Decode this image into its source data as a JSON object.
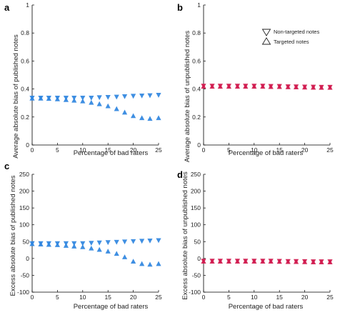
{
  "colors": {
    "blue": "#2f86e0",
    "red": "#d01a4e"
  },
  "legend": {
    "items": [
      {
        "label": "Non-targeted notes",
        "marker": "triangle-down"
      },
      {
        "label": "Targeted notes",
        "marker": "triangle-up"
      }
    ]
  },
  "chart_data": [
    {
      "panel": "a",
      "type": "scatter",
      "xlabel": "Percentage of bad raters",
      "ylabel": "Average absolute bias of published notes",
      "xlim": [
        0,
        25
      ],
      "ylim": [
        0,
        1
      ],
      "xticks": [
        "0",
        "5",
        "10",
        "15",
        "20",
        "25"
      ],
      "yticks": [
        "0",
        "0.2",
        "0.4",
        "0.6",
        "0.8",
        "1"
      ],
      "x": [
        0,
        1.7,
        3.3,
        5,
        6.7,
        8.3,
        10,
        11.7,
        13.3,
        15,
        16.7,
        18.3,
        20,
        21.7,
        23.3,
        25
      ],
      "series": [
        {
          "name": "Non-targeted notes",
          "marker": "triangle-down",
          "color": "blue",
          "values": [
            0.335,
            0.335,
            0.335,
            0.335,
            0.335,
            0.335,
            0.335,
            0.335,
            0.338,
            0.34,
            0.342,
            0.345,
            0.348,
            0.35,
            0.352,
            0.355
          ]
        },
        {
          "name": "Targeted notes",
          "marker": "triangle-up",
          "color": "blue",
          "values": [
            0.335,
            0.335,
            0.333,
            0.33,
            0.325,
            0.32,
            0.315,
            0.305,
            0.295,
            0.28,
            0.26,
            0.235,
            0.21,
            0.195,
            0.19,
            0.195
          ]
        }
      ]
    },
    {
      "panel": "b",
      "type": "scatter",
      "xlabel": "Percentage of bad raters",
      "ylabel": "Average absolute bias of unpublished notes",
      "xlim": [
        0,
        25
      ],
      "ylim": [
        0,
        1
      ],
      "xticks": [
        "0",
        "5",
        "10",
        "15",
        "20",
        "25"
      ],
      "yticks": [
        "0",
        "0.2",
        "0.4",
        "0.6",
        "0.8",
        "1"
      ],
      "x": [
        0,
        1.7,
        3.3,
        5,
        6.7,
        8.3,
        10,
        11.7,
        13.3,
        15,
        16.7,
        18.3,
        20,
        21.7,
        23.3,
        25
      ],
      "series": [
        {
          "name": "Non-targeted notes",
          "marker": "triangle-down",
          "color": "red",
          "values": [
            0.42,
            0.42,
            0.42,
            0.42,
            0.42,
            0.42,
            0.42,
            0.42,
            0.418,
            0.418,
            0.416,
            0.415,
            0.414,
            0.413,
            0.412,
            0.412
          ]
        },
        {
          "name": "Targeted notes",
          "marker": "triangle-up",
          "color": "red",
          "values": [
            0.42,
            0.42,
            0.42,
            0.42,
            0.42,
            0.42,
            0.42,
            0.42,
            0.418,
            0.418,
            0.416,
            0.415,
            0.414,
            0.413,
            0.412,
            0.412
          ]
        }
      ]
    },
    {
      "panel": "c",
      "type": "scatter",
      "xlabel": "Percentage of bad raters",
      "ylabel": "Excess absolute bias of published notes",
      "xlim": [
        0,
        25
      ],
      "ylim": [
        -100,
        250
      ],
      "xticks": [
        "0",
        "5",
        "10",
        "15",
        "20",
        "25"
      ],
      "yticks": [
        "-100",
        "-50",
        "0",
        "50",
        "100",
        "150",
        "200",
        "250"
      ],
      "x": [
        0,
        1.7,
        3.3,
        5,
        6.7,
        8.3,
        10,
        11.7,
        13.3,
        15,
        16.7,
        18.3,
        20,
        21.7,
        23.3,
        25
      ],
      "series": [
        {
          "name": "Non-targeted notes",
          "marker": "triangle-down",
          "color": "blue",
          "values": [
            44,
            44,
            44,
            44,
            44,
            44,
            44,
            45,
            46,
            47,
            48,
            49,
            50,
            51,
            52,
            53
          ]
        },
        {
          "name": "Targeted notes",
          "marker": "triangle-up",
          "color": "blue",
          "values": [
            44,
            43,
            42,
            41,
            39,
            37,
            35,
            31,
            27,
            22,
            15,
            5,
            -8,
            -15,
            -17,
            -15
          ]
        }
      ]
    },
    {
      "panel": "d",
      "type": "scatter",
      "xlabel": "Percentage of bad raters",
      "ylabel": "Excess absolute bias of unpublished notes",
      "xlim": [
        0,
        25
      ],
      "ylim": [
        -100,
        250
      ],
      "xticks": [
        "0",
        "5",
        "10",
        "15",
        "20",
        "25"
      ],
      "yticks": [
        "-100",
        "-50",
        "0",
        "50",
        "100",
        "150",
        "200",
        "250"
      ],
      "x": [
        0,
        1.7,
        3.3,
        5,
        6.7,
        8.3,
        10,
        11.7,
        13.3,
        15,
        16.7,
        18.3,
        20,
        21.7,
        23.3,
        25
      ],
      "series": [
        {
          "name": "Non-targeted notes",
          "marker": "triangle-down",
          "color": "red",
          "values": [
            -8,
            -8,
            -8,
            -8,
            -8,
            -8,
            -8,
            -8,
            -8,
            -8.5,
            -9,
            -9,
            -9.5,
            -10,
            -10,
            -10
          ]
        },
        {
          "name": "Targeted notes",
          "marker": "triangle-up",
          "color": "red",
          "values": [
            -8,
            -8,
            -8,
            -8,
            -8,
            -8,
            -8,
            -8,
            -8,
            -8.5,
            -9,
            -9,
            -9.5,
            -10,
            -10,
            -10
          ]
        }
      ]
    }
  ]
}
